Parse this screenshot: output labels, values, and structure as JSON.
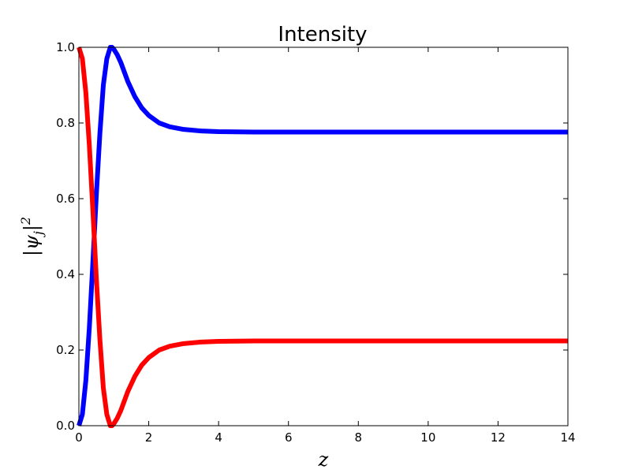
{
  "chart_data": {
    "type": "line",
    "title": "Intensity",
    "xlabel": "z",
    "ylabel": "|ψj|2",
    "xlim": [
      0,
      14
    ],
    "ylim": [
      0.0,
      1.0
    ],
    "xticks": [
      "0",
      "2",
      "4",
      "6",
      "8",
      "10",
      "12",
      "14"
    ],
    "yticks": [
      "0.0",
      "0.2",
      "0.4",
      "0.6",
      "0.8",
      "1.0"
    ],
    "grid": false,
    "legend": "none",
    "series": [
      {
        "color": "#0000ff",
        "x": [
          0,
          0.1,
          0.2,
          0.3,
          0.4,
          0.5,
          0.6,
          0.7,
          0.8,
          0.9,
          0.95,
          1.0,
          1.1,
          1.2,
          1.4,
          1.6,
          1.8,
          2.0,
          2.3,
          2.6,
          3.0,
          3.5,
          4.0,
          5.0,
          6.0,
          8.0,
          10.0,
          12.0,
          14.0
        ],
        "y": [
          0.0,
          0.03,
          0.12,
          0.26,
          0.43,
          0.61,
          0.77,
          0.9,
          0.97,
          1.0,
          1.0,
          0.995,
          0.98,
          0.96,
          0.91,
          0.87,
          0.84,
          0.82,
          0.8,
          0.79,
          0.783,
          0.779,
          0.777,
          0.776,
          0.776,
          0.776,
          0.776,
          0.776,
          0.776
        ]
      },
      {
        "color": "#ff0000",
        "x": [
          0,
          0.1,
          0.2,
          0.3,
          0.4,
          0.5,
          0.6,
          0.7,
          0.8,
          0.9,
          0.95,
          1.0,
          1.1,
          1.2,
          1.4,
          1.6,
          1.8,
          2.0,
          2.3,
          2.6,
          3.0,
          3.5,
          4.0,
          5.0,
          6.0,
          8.0,
          10.0,
          12.0,
          14.0
        ],
        "y": [
          1.0,
          0.97,
          0.88,
          0.74,
          0.57,
          0.39,
          0.23,
          0.1,
          0.03,
          0.0,
          0.0,
          0.005,
          0.02,
          0.04,
          0.09,
          0.13,
          0.16,
          0.18,
          0.2,
          0.21,
          0.217,
          0.221,
          0.223,
          0.224,
          0.224,
          0.224,
          0.224,
          0.224,
          0.224
        ]
      }
    ]
  }
}
